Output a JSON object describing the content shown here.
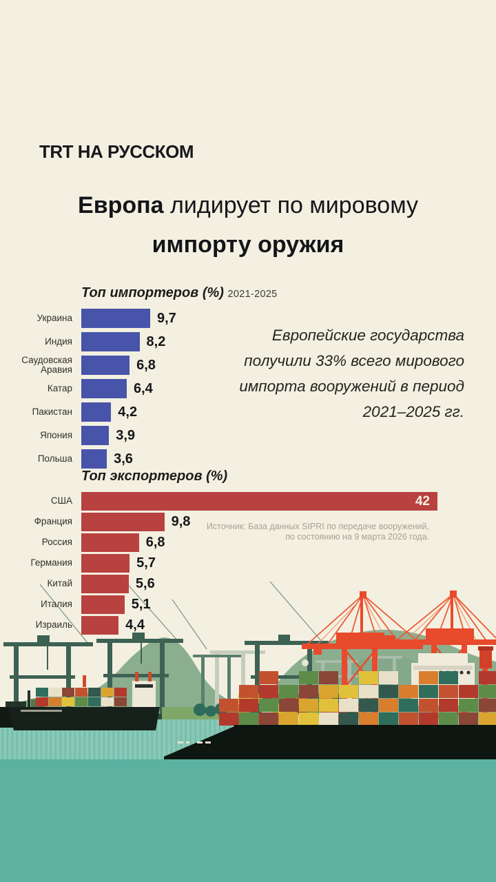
{
  "logo": {
    "text": "TRT НА РУССКОМ"
  },
  "title": {
    "lead": "Европа",
    "line1_rest": " лидирует по мировому",
    "line2": "импорту оружия"
  },
  "callout": {
    "lines": [
      "Европейские государства",
      "получили 33% всего мирового",
      "импорта вооружений в период",
      "2021–2025 гг."
    ]
  },
  "chart_data": [
    {
      "type": "bar",
      "orientation": "horizontal",
      "title": "Топ импортеров (%)",
      "subtitle": "2021-2025",
      "categories": [
        "Украина",
        "Индия",
        "Саудовская Аравия",
        "Катар",
        "Пакистан",
        "Япония",
        "Польша"
      ],
      "values": [
        9.7,
        8.2,
        6.8,
        6.4,
        4.2,
        3.9,
        3.6
      ],
      "value_labels": [
        "9,7",
        "8,2",
        "6,8",
        "6,4",
        "4,2",
        "3,9",
        "3,6"
      ],
      "bar_color": "#4754aa",
      "xlim": [
        0,
        9.7
      ],
      "grid": false,
      "legend": false,
      "inside_labels": []
    },
    {
      "type": "bar",
      "orientation": "horizontal",
      "title": "Топ экспортеров (%)",
      "subtitle": "",
      "categories": [
        "США",
        "Франция",
        "Россия",
        "Германия",
        "Китай",
        "Италия",
        "Израиль"
      ],
      "values": [
        42,
        9.8,
        6.8,
        5.7,
        5.6,
        5.1,
        4.4
      ],
      "value_labels": [
        "42",
        "9,8",
        "6,8",
        "5,7",
        "5,6",
        "5,1",
        "4,4"
      ],
      "bar_color": "#b8423f",
      "xlim": [
        0,
        42
      ],
      "grid": false,
      "legend": false,
      "inside_labels": [
        0
      ]
    }
  ],
  "source": {
    "lines": [
      "Источник: База данных SIPRI по передаче вооружений,",
      "по состоянию на 9 марта 2026 года."
    ]
  },
  "palette": {
    "background": "#f3f0e1",
    "importers_bar": "#4754aa",
    "exporters_bar": "#b8423f",
    "water": "#5cb1a1",
    "mountain": "#8bae8f",
    "red_crane": "#e84a2c",
    "green_crane": "#3d6153"
  },
  "illustration": {
    "name": "container-port-with-ships",
    "container_palette": [
      "#b23a2c",
      "#d97e2c",
      "#e2c13a",
      "#5d8c49",
      "#2f6e5d",
      "#e9e0ca",
      "#8a4636",
      "#c2522f",
      "#33584e",
      "#d9a52f"
    ]
  }
}
